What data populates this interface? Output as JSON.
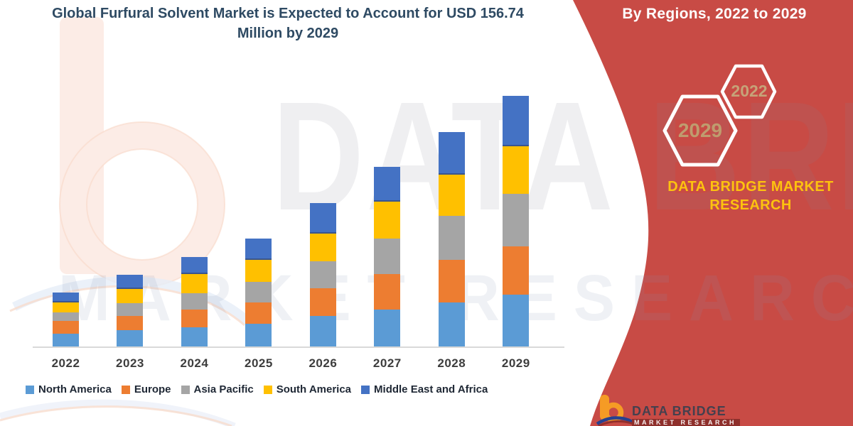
{
  "title": "Global Furfural Solvent Market is Expected to Account for USD 156.74 Million by 2029",
  "banner": {
    "heading": "By Regions, 2022 to 2029",
    "hex_left_label": "2029",
    "hex_right_label": "2022",
    "brand": "DATA BRIDGE MARKET RESEARCH",
    "accent_red": "#c84b45",
    "brand_text_color": "#fdc20f",
    "hex_label_color": "#bf9c6e"
  },
  "watermark": {
    "line1": "DATA BRIDGE",
    "line2": "MARKET RESEARCH"
  },
  "footer_logo": {
    "name": "DATA BRIDGE",
    "sub": "MARKET RESEARCH"
  },
  "chart_data": {
    "type": "bar",
    "stacked": true,
    "title": "Global Furfural Solvent Market is Expected to Account for USD 156.74 Million by 2029",
    "unit": "USD Million",
    "xlabel": "",
    "ylabel": "",
    "ylim": [
      0,
      160
    ],
    "grid": false,
    "legend_position": "bottom",
    "categories": [
      "2022",
      "2023",
      "2024",
      "2025",
      "2026",
      "2027",
      "2028",
      "2029"
    ],
    "series": [
      {
        "name": "North America",
        "color": "#5B9BD5",
        "values": [
          8.1,
          10.2,
          12.0,
          14.4,
          19.0,
          23.0,
          27.5,
          32.5
        ]
      },
      {
        "name": "Europe",
        "color": "#ED7D31",
        "values": [
          7.9,
          9.0,
          11.1,
          13.3,
          17.3,
          22.2,
          26.6,
          30.3
        ]
      },
      {
        "name": "Asia Pacific",
        "color": "#A5A5A5",
        "values": [
          5.2,
          8.1,
          10.3,
          12.9,
          17.0,
          22.2,
          27.5,
          32.5
        ]
      },
      {
        "name": "South America",
        "color": "#FFC000",
        "values": [
          6.4,
          8.7,
          11.9,
          13.5,
          17.5,
          23.0,
          25.8,
          29.9
        ]
      },
      {
        "name": "Middle East and Africa",
        "color": "#4472C4",
        "values": [
          6.2,
          9.0,
          10.7,
          13.4,
          18.9,
          21.9,
          26.8,
          31.54
        ]
      }
    ],
    "totals": [
      33.8,
      45.0,
      56.0,
      67.5,
      89.7,
      112.3,
      134.2,
      156.74
    ]
  }
}
